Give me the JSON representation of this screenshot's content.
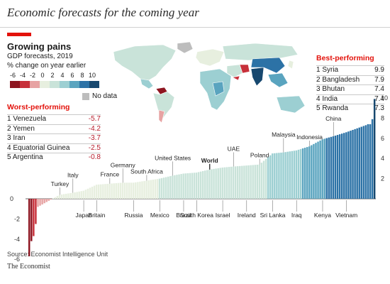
{
  "page_title": "Economic forecasts for the coming year",
  "chart_title": "Growing pains",
  "subtitle": "GDP forecasts, 2019",
  "units": "% change on year earlier",
  "legend": {
    "ticks": [
      "-6",
      "-4",
      "-2",
      "0",
      "2",
      "4",
      "6",
      "8",
      "10"
    ],
    "colors": [
      "#8e1520",
      "#c7303a",
      "#e7a3a3",
      "#e7efdf",
      "#c9e3d9",
      "#9ccfd2",
      "#5aa4bf",
      "#2c72a6",
      "#17486f"
    ],
    "no_data_label": "No data",
    "no_data_color": "#bdbdbd"
  },
  "worst_performing": {
    "heading": "Worst-performing",
    "rows": [
      {
        "label": "1 Venezuela",
        "value": "-5.7"
      },
      {
        "label": "2 Yemen",
        "value": "-4.2"
      },
      {
        "label": "3 Iran",
        "value": "-3.7"
      },
      {
        "label": "4 Equatorial Guinea",
        "value": "-2.5"
      },
      {
        "label": "5 Argentina",
        "value": "-0.8"
      }
    ]
  },
  "best_performing": {
    "heading": "Best-performing",
    "rows": [
      {
        "label": "1 Syria",
        "value": "9.9"
      },
      {
        "label": "2 Bangladesh",
        "value": "7.9"
      },
      {
        "label": "3 Bhutan",
        "value": "7.4"
      },
      {
        "label": "4 India",
        "value": "7.4"
      },
      {
        "label": "5 Rwanda",
        "value": "7.3"
      }
    ]
  },
  "chart_data": {
    "type": "bar",
    "title": "Growing pains",
    "subtitle": "GDP forecasts, 2019",
    "ylabel": "% change on year earlier",
    "ylim": [
      -6,
      10
    ],
    "yticks": [
      -6,
      -4,
      -2,
      0,
      2,
      4,
      6,
      8,
      10
    ],
    "n_countries": 160,
    "sorted_ascending": true,
    "min_values": [
      -5.7,
      -4.2,
      -3.7,
      -2.5,
      -0.8
    ],
    "max_values": [
      7.3,
      7.4,
      7.4,
      7.9,
      9.9
    ],
    "labelled_bars": [
      {
        "name": "Turkey",
        "value": 0.4
      },
      {
        "name": "Italy",
        "value": 0.6
      },
      {
        "name": "Japan",
        "value": 0.8
      },
      {
        "name": "France",
        "value": 1.5
      },
      {
        "name": "Britain",
        "value": 1.4
      },
      {
        "name": "Germany",
        "value": 1.6
      },
      {
        "name": "Russia",
        "value": 1.6
      },
      {
        "name": "South Africa",
        "value": 1.8
      },
      {
        "name": "Mexico",
        "value": 2.0
      },
      {
        "name": "United States",
        "value": 2.3
      },
      {
        "name": "Brazil",
        "value": 2.5
      },
      {
        "name": "South Korea",
        "value": 2.6
      },
      {
        "name": "World",
        "value": 2.9
      },
      {
        "name": "Israel",
        "value": 3.1
      },
      {
        "name": "UAE",
        "value": 3.2
      },
      {
        "name": "Ireland",
        "value": 3.3
      },
      {
        "name": "Poland",
        "value": 3.4
      },
      {
        "name": "Malaysia",
        "value": 4.6
      },
      {
        "name": "Sri Lanka",
        "value": 4.5
      },
      {
        "name": "Iraq",
        "value": 4.8
      },
      {
        "name": "Indonesia",
        "value": 5.2
      },
      {
        "name": "Kenya",
        "value": 5.9
      },
      {
        "name": "China",
        "value": 6.2
      },
      {
        "name": "Vietnam",
        "value": 6.6
      }
    ]
  },
  "source": "Source: Economist Intelligence Unit",
  "brand": "The Economist"
}
